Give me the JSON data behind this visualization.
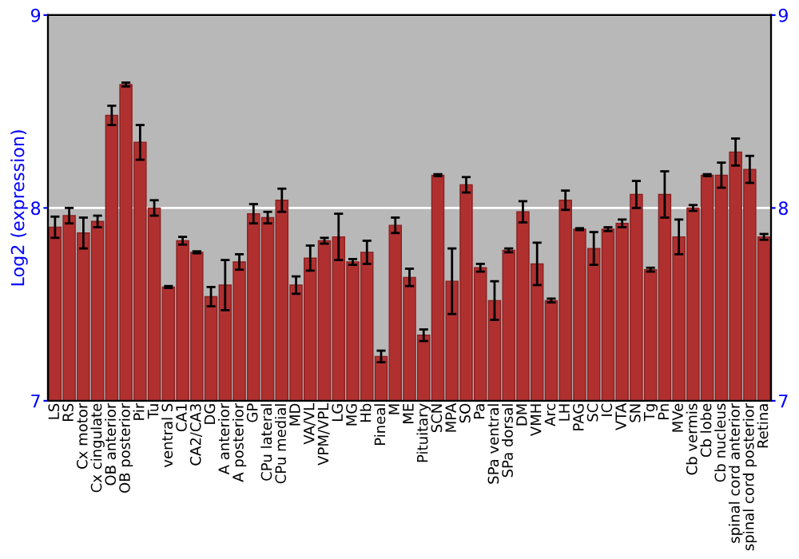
{
  "chart_data": {
    "type": "bar",
    "ylabel": "Log2 (expression)",
    "categories": [
      "LS",
      "RS",
      "Cx motor",
      "Cx cingulate",
      "OB anterior",
      "OB posterior",
      "Pir",
      "Tu",
      "ventral S",
      "CA1",
      "CA2/CA3",
      "DG",
      "A anterior",
      "A posterior",
      "GP",
      "CPu lateral",
      "CPu medial",
      "MD",
      "VA/VL",
      "VPM/VPL",
      "LG",
      "MG",
      "Hb",
      "Pineal",
      "M",
      "ME",
      "Pituitary",
      "SCN",
      "MPA",
      "SO",
      "Pa",
      "SPa ventral",
      "SPa dorsal",
      "DM",
      "VMH",
      "Arc",
      "LH",
      "PAG",
      "SC",
      "IC",
      "VTA",
      "SN",
      "Tg",
      "Pn",
      "MVe",
      "Cb vermis",
      "Cb lobe",
      "Cb nucleus",
      "spinal cord anterior",
      "spinal cord posterior",
      "Retina"
    ],
    "values": [
      7.9,
      7.96,
      7.87,
      7.93,
      8.48,
      8.64,
      8.34,
      8.0,
      7.59,
      7.83,
      7.77,
      7.54,
      7.6,
      7.72,
      7.97,
      7.95,
      8.04,
      7.6,
      7.74,
      7.83,
      7.85,
      7.72,
      7.77,
      7.23,
      7.91,
      7.64,
      7.34,
      8.17,
      7.62,
      8.12,
      7.69,
      7.52,
      7.78,
      7.98,
      7.71,
      7.52,
      8.04,
      7.89,
      7.79,
      7.89,
      7.92,
      8.07,
      7.68,
      8.07,
      7.85,
      8.0,
      8.17,
      8.17,
      8.29,
      8.2,
      7.85
    ],
    "errors": [
      0.055,
      0.04,
      0.08,
      0.03,
      0.05,
      0.01,
      0.09,
      0.04,
      0.005,
      0.02,
      0.005,
      0.05,
      0.13,
      0.04,
      0.05,
      0.03,
      0.06,
      0.045,
      0.065,
      0.015,
      0.12,
      0.015,
      0.06,
      0.03,
      0.04,
      0.045,
      0.03,
      0.005,
      0.17,
      0.04,
      0.02,
      0.1,
      0.01,
      0.055,
      0.11,
      0.01,
      0.05,
      0.005,
      0.085,
      0.01,
      0.02,
      0.07,
      0.01,
      0.12,
      0.09,
      0.015,
      0.005,
      0.065,
      0.07,
      0.07,
      0.015
    ],
    "color": "#b03030",
    "ylim": [
      7,
      9
    ],
    "yticks": [
      7,
      8,
      9
    ],
    "y2lim": [
      7,
      9
    ],
    "y2ticks": [
      7,
      8,
      9
    ],
    "grid": "y"
  }
}
